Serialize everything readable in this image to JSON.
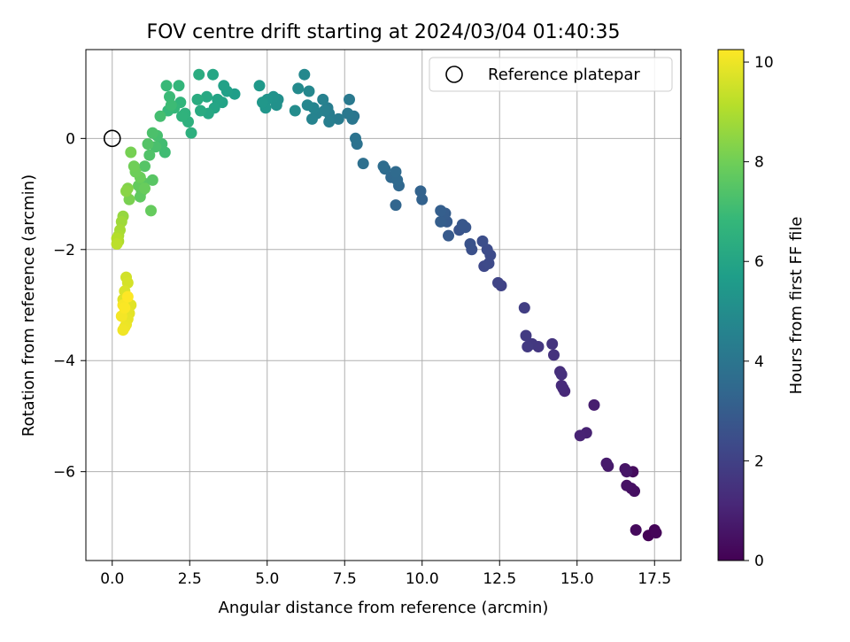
{
  "chart_data": {
    "type": "scatter",
    "title": "FOV centre drift starting at 2024/03/04 01:40:35",
    "xlabel": "Angular distance from reference (arcmin)",
    "ylabel": "Rotation from reference (arcmin)",
    "xlim": [
      -0.85,
      18.35
    ],
    "ylim": [
      -7.6,
      1.6
    ],
    "xticks": [
      0.0,
      2.5,
      5.0,
      7.5,
      10.0,
      12.5,
      15.0,
      17.5
    ],
    "xtick_labels": [
      "0.0",
      "2.5",
      "5.0",
      "7.5",
      "10.0",
      "12.5",
      "15.0",
      "17.5"
    ],
    "yticks": [
      0,
      -2,
      -4,
      -6
    ],
    "ytick_labels": [
      "0",
      "−2",
      "−4",
      "−6"
    ],
    "grid": true,
    "legend": {
      "placement": "top-right",
      "entries": [
        "Reference platepar"
      ]
    },
    "reference_point": {
      "x": 0.0,
      "y": 0.0
    },
    "colorbar": {
      "label": "Hours from first FF file",
      "colormap": "viridis",
      "range": [
        0,
        10.25
      ],
      "ticks": [
        0,
        2,
        4,
        6,
        8,
        10
      ],
      "tick_labels": [
        "0",
        "2",
        "4",
        "6",
        "8",
        "10"
      ]
    },
    "colormap_stops": [
      "#440154",
      "#482878",
      "#3e4989",
      "#31688e",
      "#26828e",
      "#1f9e89",
      "#35b779",
      "#6ece58",
      "#b5de2b",
      "#fde725"
    ],
    "series": [
      {
        "x": [
          17.3,
          17.5,
          17.55,
          16.9,
          16.8,
          16.85,
          16.75,
          16.6,
          16.55,
          16.6,
          16.0,
          15.95,
          15.55,
          15.3,
          15.1,
          14.6,
          14.55,
          14.5,
          14.45,
          14.5,
          14.25,
          14.2,
          13.75,
          13.55,
          13.4,
          13.35,
          13.3,
          12.55,
          12.45,
          12.0,
          12.15,
          12.2,
          12.1,
          11.95,
          11.6,
          11.55,
          11.2,
          11.4,
          11.3,
          10.85,
          10.8,
          10.75,
          10.6,
          10.6,
          10.0,
          9.95,
          9.15,
          9.25,
          9.0,
          9.2,
          9.15,
          8.8,
          8.75,
          8.1,
          7.9,
          7.85,
          7.8,
          7.75,
          7.6,
          7.65,
          7.3,
          7.0,
          6.95,
          7.0,
          6.85,
          6.8,
          6.6,
          6.45,
          6.5,
          6.3,
          6.35,
          6.2,
          6.0,
          5.9,
          5.35,
          5.3,
          5.2,
          5.0,
          4.95,
          4.85,
          4.75,
          3.95,
          3.7,
          3.6,
          3.55,
          3.4,
          3.3,
          3.25,
          3.1,
          3.05,
          2.85,
          2.75,
          2.8,
          2.55,
          2.45,
          2.35,
          2.25,
          2.2,
          2.15,
          2.0,
          1.8,
          1.75,
          1.85,
          1.9,
          1.7,
          1.6,
          1.55,
          1.45,
          1.4,
          1.3,
          1.2,
          1.15,
          1.05,
          1.0,
          0.95,
          0.9,
          0.85,
          1.3,
          1.25,
          1.05,
          0.9,
          0.75,
          0.7,
          0.6,
          0.55,
          0.5,
          0.45,
          0.35,
          0.3,
          0.25,
          0.2,
          0.2,
          0.15,
          0.15,
          0.45,
          0.5,
          0.4,
          0.35,
          0.6,
          0.55,
          0.5,
          0.45,
          0.4,
          0.35,
          0.3,
          0.35,
          0.4,
          0.5
        ],
        "y": [
          -7.15,
          -7.05,
          -7.1,
          -7.05,
          -6.0,
          -6.35,
          -6.3,
          -6.25,
          -5.95,
          -6.0,
          -5.9,
          -5.85,
          -4.8,
          -5.3,
          -5.35,
          -4.55,
          -4.5,
          -4.45,
          -4.2,
          -4.25,
          -3.9,
          -3.7,
          -3.75,
          -3.7,
          -3.75,
          -3.55,
          -3.05,
          -2.65,
          -2.6,
          -2.3,
          -2.25,
          -2.1,
          -2.0,
          -1.85,
          -2.0,
          -1.9,
          -1.65,
          -1.6,
          -1.55,
          -1.75,
          -1.5,
          -1.35,
          -1.5,
          -1.3,
          -1.1,
          -0.95,
          -1.2,
          -0.85,
          -0.7,
          -0.75,
          -0.6,
          -0.55,
          -0.5,
          -0.45,
          -0.1,
          0.0,
          0.4,
          0.35,
          0.45,
          0.7,
          0.35,
          0.45,
          0.55,
          0.3,
          0.5,
          0.7,
          0.45,
          0.35,
          0.55,
          0.6,
          0.85,
          1.15,
          0.9,
          0.5,
          0.7,
          0.6,
          0.75,
          0.7,
          0.55,
          0.65,
          0.95,
          0.8,
          0.85,
          0.95,
          0.65,
          0.7,
          0.55,
          1.15,
          0.45,
          0.75,
          0.5,
          0.7,
          1.15,
          0.1,
          0.3,
          0.45,
          0.4,
          0.65,
          0.95,
          0.55,
          0.5,
          0.95,
          0.75,
          0.6,
          -0.25,
          -0.1,
          0.4,
          0.05,
          -0.15,
          0.1,
          -0.3,
          -0.1,
          -0.5,
          -0.8,
          -0.95,
          -1.05,
          -0.85,
          -0.75,
          -1.3,
          -0.9,
          -0.7,
          -0.6,
          -0.5,
          -0.25,
          -1.1,
          -0.9,
          -0.95,
          -1.4,
          -1.5,
          -1.65,
          -1.75,
          -1.85,
          -1.8,
          -1.9,
          -2.5,
          -2.6,
          -2.75,
          -2.9,
          -3.0,
          -3.15,
          -3.25,
          -3.35,
          -3.4,
          -3.45,
          -3.2,
          -3.0,
          -3.05,
          -2.85
        ],
        "hours": [
          0.05,
          0.1,
          0.15,
          0.25,
          0.3,
          0.4,
          0.45,
          0.5,
          0.55,
          0.6,
          0.7,
          0.75,
          0.85,
          0.95,
          1.0,
          1.15,
          1.2,
          1.25,
          1.35,
          1.4,
          1.5,
          1.55,
          1.65,
          1.7,
          1.75,
          1.8,
          1.9,
          2.05,
          2.1,
          2.25,
          2.3,
          2.35,
          2.4,
          2.45,
          2.55,
          2.6,
          2.7,
          2.75,
          2.8,
          2.9,
          2.95,
          3.0,
          3.05,
          3.1,
          3.2,
          3.25,
          3.35,
          3.4,
          3.45,
          3.5,
          3.55,
          3.6,
          3.65,
          3.75,
          3.85,
          3.9,
          4.0,
          4.05,
          4.1,
          4.15,
          4.25,
          4.3,
          4.35,
          4.4,
          4.45,
          4.5,
          4.55,
          4.6,
          4.65,
          4.7,
          4.75,
          4.8,
          4.9,
          4.95,
          5.1,
          5.15,
          5.2,
          5.3,
          5.35,
          5.4,
          5.5,
          5.7,
          5.8,
          5.85,
          5.9,
          5.95,
          6.0,
          6.05,
          6.1,
          6.15,
          6.25,
          6.3,
          6.35,
          6.45,
          6.5,
          6.55,
          6.6,
          6.7,
          6.75,
          6.8,
          6.85,
          6.9,
          6.95,
          7.0,
          7.05,
          7.1,
          7.15,
          7.2,
          7.25,
          7.3,
          7.4,
          7.45,
          7.5,
          7.6,
          7.65,
          7.7,
          7.75,
          7.55,
          7.8,
          7.85,
          7.9,
          7.95,
          8.0,
          8.1,
          8.15,
          8.3,
          8.4,
          8.6,
          8.75,
          8.85,
          8.95,
          9.0,
          9.1,
          9.2,
          9.55,
          9.6,
          9.7,
          9.75,
          9.8,
          9.85,
          9.9,
          9.95,
          10.0,
          10.05,
          10.1,
          10.15,
          10.2,
          10.25
        ]
      }
    ]
  }
}
